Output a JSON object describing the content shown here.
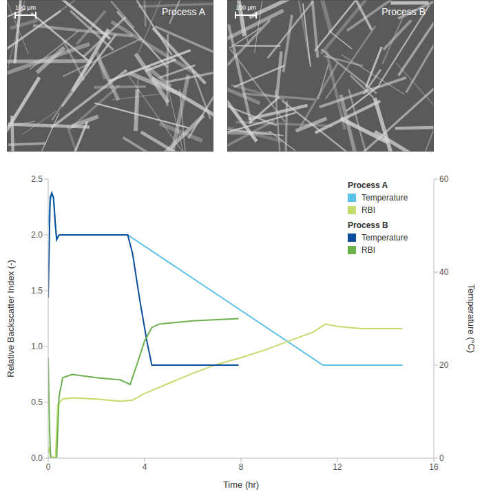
{
  "images": [
    {
      "label": "Process A",
      "scale_bar": "100 µm"
    },
    {
      "label": "Process B",
      "scale_bar": "100 µm"
    }
  ],
  "chart_data": {
    "type": "line",
    "x_label": "Time (hr)",
    "y_label": "Relative Backscatter Index (-)",
    "y2_label": "Temperature (°C)",
    "xlim": [
      0,
      16
    ],
    "xticks": [
      0,
      4,
      8,
      12,
      16
    ],
    "ylim": [
      0,
      2.5
    ],
    "yticks": [
      {
        "value": 0,
        "label": "0.0"
      },
      {
        "value": 0.5,
        "label": "0.5"
      },
      {
        "value": 1,
        "label": "1.0"
      },
      {
        "value": 1.5,
        "label": "1.5"
      },
      {
        "value": 2,
        "label": "2.0"
      },
      {
        "value": 2.5,
        "label": "2.5"
      }
    ],
    "y2lim": [
      0,
      60
    ],
    "y2ticks": [
      0,
      20,
      40,
      60
    ],
    "grid": false,
    "legend": "upper right",
    "series": [
      {
        "group": "Process A",
        "name": "Temperature",
        "color": "#5bc2e7",
        "axis": "y2",
        "x": [
          0,
          0.08,
          0.15,
          0.22,
          0.3,
          0.35,
          0.45,
          1,
          3.3,
          11.4,
          12,
          14.7
        ],
        "values": [
          50,
          55,
          57,
          56,
          50,
          47,
          48,
          48,
          48,
          20,
          20,
          20
        ]
      },
      {
        "group": "Process A",
        "name": "RBI",
        "color": "#c3dc6b",
        "axis": "y",
        "x": [
          0,
          0.1,
          0.3,
          0.4,
          0.6,
          1,
          2,
          3,
          3.5,
          4,
          5,
          6,
          7,
          8,
          9,
          10,
          11,
          11.5,
          12,
          13,
          14,
          14.7
        ],
        "values": [
          0.1,
          0.02,
          0,
          0.48,
          0.53,
          0.54,
          0.53,
          0.51,
          0.52,
          0.58,
          0.67,
          0.76,
          0.84,
          0.9,
          0.97,
          1.05,
          1.13,
          1.2,
          1.18,
          1.16,
          1.16,
          1.16
        ]
      },
      {
        "group": "Process B",
        "name": "Temperature",
        "color": "#0a4e9b",
        "axis": "y2",
        "x": [
          0,
          0.08,
          0.15,
          0.22,
          0.3,
          0.35,
          0.45,
          1,
          2,
          3.3,
          3.5,
          3.8,
          4.1,
          4.3,
          5,
          6,
          7,
          7.9
        ],
        "values": [
          34.5,
          56,
          57,
          56,
          50,
          47,
          48,
          48,
          48,
          48,
          44,
          34,
          25,
          20,
          20,
          20,
          20,
          20
        ]
      },
      {
        "group": "Process B",
        "name": "RBI",
        "color": "#6ab04c",
        "axis": "y",
        "x": [
          0,
          0.05,
          0.1,
          0.35,
          0.45,
          0.6,
          1,
          2,
          3,
          3.4,
          3.7,
          4,
          4.3,
          4.6,
          5,
          6,
          7,
          7.9
        ],
        "values": [
          0.9,
          0.3,
          0,
          0,
          0.55,
          0.72,
          0.75,
          0.72,
          0.7,
          0.66,
          0.85,
          1.05,
          1.17,
          1.2,
          1.21,
          1.23,
          1.24,
          1.25
        ]
      }
    ]
  }
}
